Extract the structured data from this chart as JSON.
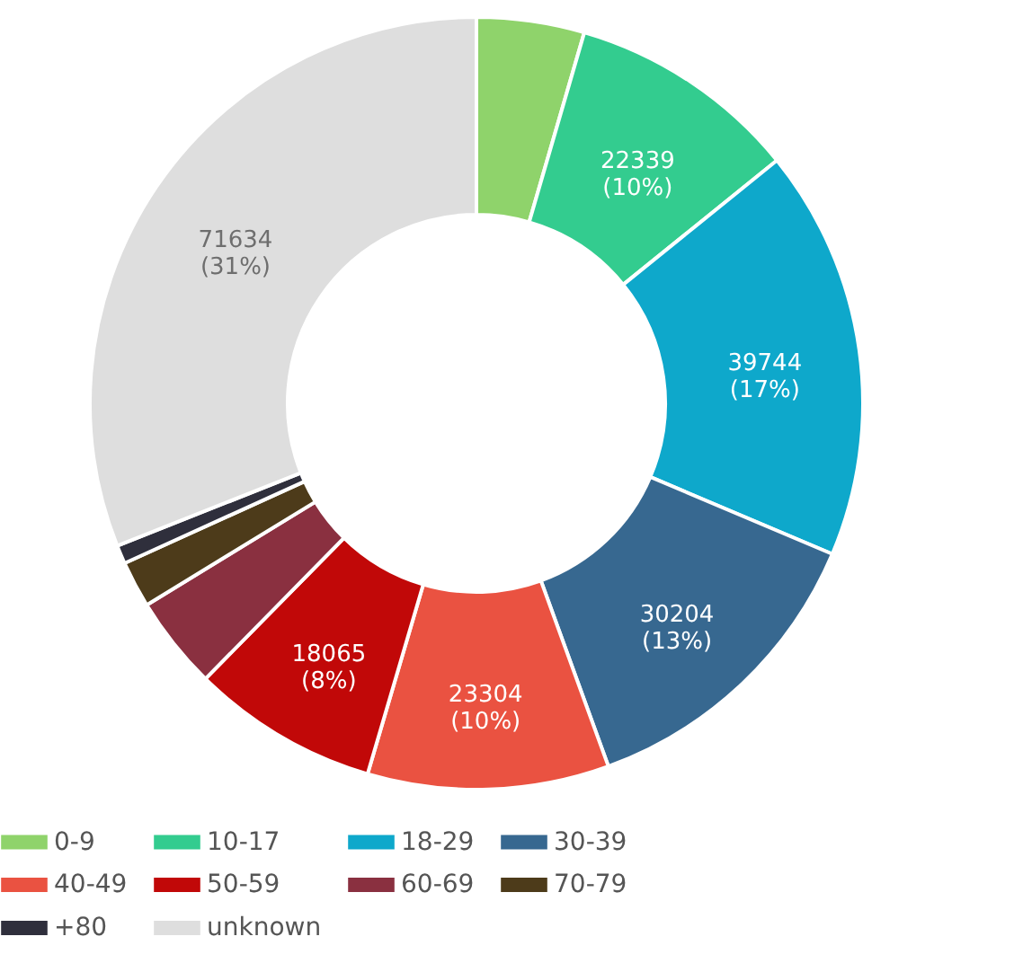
{
  "chart_data": {
    "type": "donut",
    "categories": [
      "0-9",
      "10-17",
      "18-29",
      "30-39",
      "40-49",
      "50-59",
      "60-69",
      "70-79",
      "+80",
      "unknown"
    ],
    "values": [
      10400,
      22339,
      39744,
      30204,
      23304,
      18065,
      9000,
      4500,
      1800,
      71634
    ],
    "colors": [
      "#8fd36b",
      "#33cc8f",
      "#0ea8cb",
      "#376890",
      "#ea5241",
      "#c10808",
      "#8a3040",
      "#4d3b1a",
      "#2f2f3c",
      "#dedede"
    ],
    "value_labels": [
      null,
      "22339\n(10%)",
      "39744\n(17%)",
      "30204\n(13%)",
      "23304\n(10%)",
      "18065\n(8%)",
      null,
      null,
      null,
      "71634\n(31%)"
    ],
    "legend": "bottom"
  }
}
